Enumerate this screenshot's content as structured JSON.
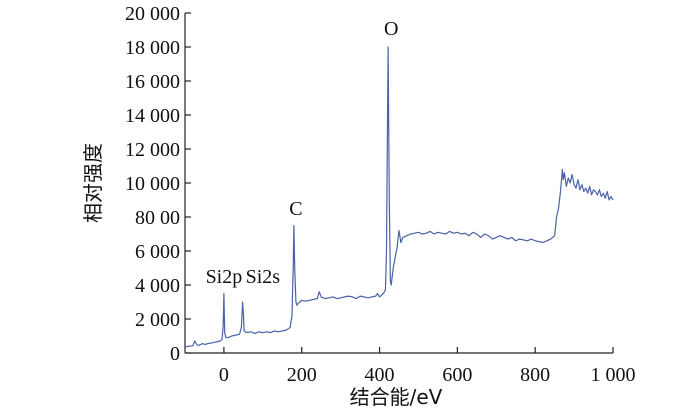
{
  "chart_data": {
    "type": "line",
    "title": "",
    "xlabel": "结合能/eV",
    "ylabel": "相对强度",
    "xlim": [
      -100,
      1000
    ],
    "ylim": [
      0,
      20000
    ],
    "x_ticks": [
      0,
      200,
      400,
      600,
      800,
      1000
    ],
    "x_tick_labels": [
      "0",
      "200",
      "400",
      "600",
      "800",
      "1 000"
    ],
    "y_ticks": [
      0,
      2000,
      4000,
      6000,
      8000,
      10000,
      12000,
      14000,
      16000,
      18000,
      20000
    ],
    "y_tick_labels": [
      "0",
      "2 000",
      "4 000",
      "6 000",
      "80 00",
      "10 000",
      "12 000",
      "14 000",
      "16 000",
      "18 000",
      "20 000"
    ],
    "grid": false,
    "line_color": "#4a63a8",
    "series": [
      {
        "x": [
          -100,
          -90,
          -80,
          -75,
          -70,
          -65,
          -60,
          -55,
          -50,
          -40,
          -30,
          -20,
          -10,
          -5,
          -2,
          0,
          2,
          5,
          10,
          15,
          20,
          30,
          40,
          45,
          48,
          50,
          52,
          55,
          60,
          70,
          80,
          90,
          100,
          110,
          120,
          130,
          140,
          150,
          160,
          170,
          175,
          178,
          180,
          182,
          185,
          188,
          190,
          195,
          200,
          210,
          220,
          230,
          240,
          245,
          250,
          255,
          260,
          270,
          280,
          290,
          300,
          310,
          320,
          330,
          340,
          350,
          360,
          370,
          380,
          390,
          395,
          400,
          405,
          410,
          415,
          418,
          420,
          422,
          425,
          428,
          430,
          435,
          440,
          445,
          450,
          455,
          460,
          470,
          480,
          490,
          500,
          510,
          520,
          530,
          540,
          550,
          560,
          570,
          580,
          590,
          600,
          610,
          620,
          630,
          640,
          650,
          660,
          670,
          680,
          690,
          700,
          710,
          720,
          730,
          740,
          750,
          760,
          770,
          780,
          790,
          800,
          810,
          820,
          830,
          840,
          850,
          855,
          860,
          865,
          870,
          872,
          875,
          880,
          885,
          890,
          895,
          900,
          905,
          910,
          915,
          920,
          925,
          930,
          935,
          940,
          945,
          950,
          955,
          960,
          965,
          970,
          975,
          980,
          985,
          990,
          995,
          1000
        ],
        "y": [
          350,
          400,
          420,
          700,
          500,
          450,
          500,
          550,
          500,
          560,
          600,
          650,
          700,
          800,
          1500,
          3500,
          1200,
          900,
          900,
          950,
          1000,
          1050,
          1100,
          1500,
          3000,
          2300,
          1300,
          1250,
          1200,
          1250,
          1150,
          1250,
          1200,
          1250,
          1200,
          1300,
          1250,
          1300,
          1350,
          1500,
          2200,
          5000,
          7500,
          5000,
          3000,
          2800,
          2900,
          3000,
          3100,
          3050,
          3100,
          3150,
          3200,
          3600,
          3300,
          3250,
          3200,
          3250,
          3300,
          3200,
          3250,
          3300,
          3350,
          3300,
          3200,
          3350,
          3300,
          3250,
          3300,
          3350,
          3500,
          3300,
          3400,
          3500,
          3700,
          6000,
          12000,
          18000,
          9000,
          4200,
          4000,
          5000,
          5600,
          6200,
          7200,
          6500,
          6800,
          6900,
          7000,
          7050,
          7100,
          7000,
          7050,
          7150,
          7000,
          7100,
          7050,
          7000,
          7150,
          7050,
          7100,
          7000,
          7050,
          6900,
          7100,
          7000,
          6800,
          7000,
          6900,
          6700,
          6800,
          6900,
          6800,
          6700,
          6800,
          6600,
          6700,
          6650,
          6600,
          6700,
          6600,
          6550,
          6500,
          6600,
          6700,
          6900,
          8000,
          8500,
          9500,
          10800,
          10200,
          10600,
          9800,
          10300,
          10000,
          10500,
          9900,
          9700,
          10200,
          9600,
          9900,
          9500,
          9700,
          9400,
          9800,
          9300,
          9600,
          9500,
          9300,
          9600,
          9200,
          9400,
          9100,
          9500,
          9000,
          9200,
          9000
        ]
      }
    ],
    "annotations": [
      {
        "text": "Si2p",
        "x": 0,
        "y": 4000
      },
      {
        "text": "Si2s",
        "x": 100,
        "y": 4000
      },
      {
        "text": "C",
        "x": 185,
        "y": 8000
      },
      {
        "text": "O",
        "x": 430,
        "y": 18600
      }
    ]
  }
}
